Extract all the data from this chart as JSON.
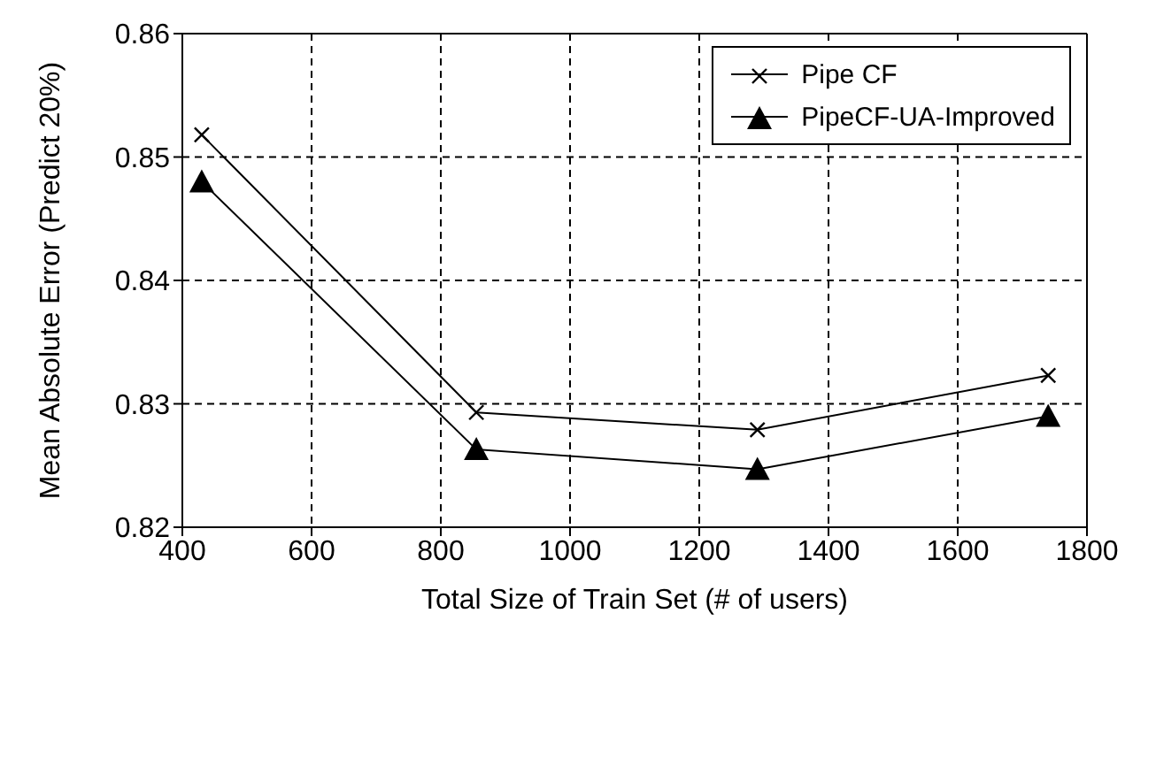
{
  "chart_data": {
    "type": "line",
    "xlabel": "Total Size of Train Set (# of users)",
    "ylabel": "Mean Absolute Error (Predict 20%)",
    "x": [
      430,
      855,
      1290,
      1740
    ],
    "series": [
      {
        "name": "Pipe CF",
        "color": "#000000",
        "marker": "cross",
        "values": [
          0.8518,
          0.8293,
          0.8279,
          0.8323
        ]
      },
      {
        "name": "PipeCF-UA-Improved",
        "color": "#000000",
        "marker": "triangle",
        "values": [
          0.848,
          0.8263,
          0.8247,
          0.829
        ]
      }
    ],
    "xlim": [
      400,
      1800
    ],
    "xticks": [
      400,
      600,
      800,
      1000,
      1200,
      1400,
      1600,
      1800
    ],
    "ylim": [
      0.82,
      0.86
    ],
    "yticks": [
      0.82,
      0.83,
      0.84,
      0.85,
      0.86
    ],
    "grid": true,
    "legend": "top right",
    "line_style": "solid"
  }
}
